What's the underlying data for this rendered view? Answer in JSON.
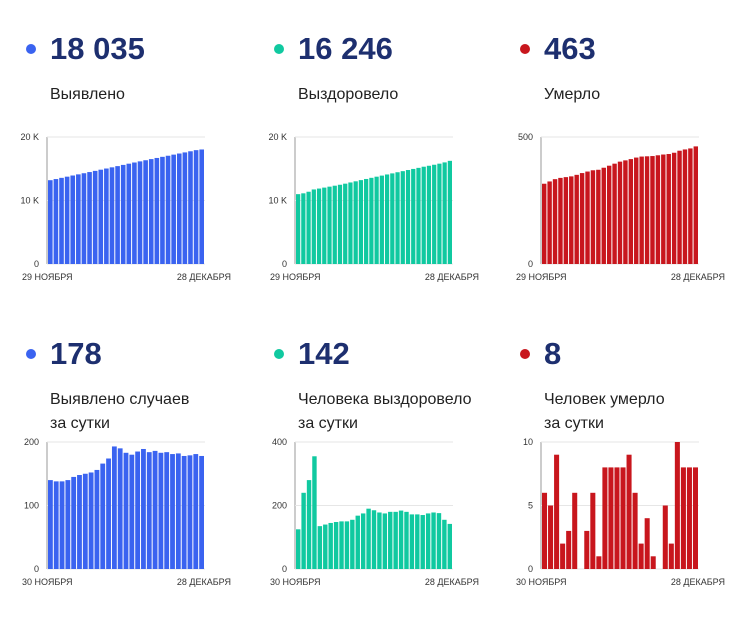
{
  "panels": [
    {
      "id": "total-cases",
      "value": "18 035",
      "label_lines": [
        "Выявлено"
      ],
      "color": "#3a63f0",
      "chart_data": {
        "type": "bar",
        "x_start_label": "29 НОЯБРЯ",
        "x_end_label": "28 ДЕКАБРЯ",
        "y_ticks": [
          {
            "v": 0,
            "t": "0"
          },
          {
            "v": 10000,
            "t": "10 K"
          },
          {
            "v": 20000,
            "t": "20 K"
          }
        ],
        "ylim": [
          0,
          20000
        ],
        "values": [
          13197,
          13377,
          13566,
          13752,
          13936,
          14116,
          14294,
          14478,
          14664,
          14852,
          15036,
          15222,
          15414,
          15605,
          15796,
          15983,
          16164,
          16340,
          16520,
          16700,
          16876,
          17048,
          17224,
          17398,
          17572,
          17752,
          17928,
          18035
        ]
      }
    },
    {
      "id": "total-recovered",
      "value": "16 246",
      "label_lines": [
        "Выздоровело"
      ],
      "color": "#10c9a0",
      "chart_data": {
        "type": "bar",
        "x_start_label": "29 НОЯБРЯ",
        "x_end_label": "28 ДЕКАБРЯ",
        "y_ticks": [
          {
            "v": 0,
            "t": "0"
          },
          {
            "v": 10000,
            "t": "10 K"
          },
          {
            "v": 20000,
            "t": "20 K"
          }
        ],
        "ylim": [
          0,
          20000
        ],
        "values": [
          11000,
          11130,
          11380,
          11740,
          11880,
          12030,
          12180,
          12330,
          12480,
          12650,
          12840,
          13020,
          13210,
          13390,
          13570,
          13750,
          13920,
          14100,
          14270,
          14450,
          14620,
          14800,
          14970,
          15140,
          15320,
          15470,
          15630,
          15800,
          16000,
          16246
        ]
      }
    },
    {
      "id": "total-deaths",
      "value": "463",
      "label_lines": [
        "Умерло"
      ],
      "color": "#c8161d",
      "chart_data": {
        "type": "bar",
        "x_start_label": "29 НОЯБРЯ",
        "x_end_label": "28 ДЕКАБРЯ",
        "y_ticks": [
          {
            "v": 0,
            "t": "0"
          },
          {
            "v": 500,
            "t": "500"
          }
        ],
        "ylim": [
          0,
          500
        ],
        "values": [
          316,
          325,
          334,
          339,
          342,
          345,
          351,
          358,
          364,
          369,
          371,
          379,
          387,
          395,
          403,
          408,
          413,
          419,
          423,
          424,
          425,
          428,
          431,
          433,
          438,
          446,
          451,
          455,
          463
        ]
      }
    },
    {
      "id": "daily-cases",
      "value": "178",
      "label_lines": [
        "Выявлено случаев",
        "за сутки"
      ],
      "color": "#3a63f0",
      "chart_data": {
        "type": "bar",
        "x_start_label": "30 НОЯБРЯ",
        "x_end_label": "28 ДЕКАБРЯ",
        "y_ticks": [
          {
            "v": 0,
            "t": "0"
          },
          {
            "v": 100,
            "t": "100"
          },
          {
            "v": 200,
            "t": "200"
          }
        ],
        "ylim": [
          0,
          200
        ],
        "values": [
          140,
          138,
          138,
          140,
          145,
          148,
          150,
          152,
          156,
          166,
          174,
          193,
          190,
          183,
          180,
          185,
          189,
          184,
          186,
          183,
          184,
          181,
          182,
          178,
          179,
          181,
          178
        ]
      }
    },
    {
      "id": "daily-recovered",
      "value": "142",
      "label_lines": [
        "Человека выздоровело",
        "за сутки"
      ],
      "color": "#10c9a0",
      "chart_data": {
        "type": "bar",
        "x_start_label": "30 НОЯБРЯ",
        "x_end_label": "28 ДЕКАБРЯ",
        "y_ticks": [
          {
            "v": 0,
            "t": "0"
          },
          {
            "v": 200,
            "t": "200"
          },
          {
            "v": 400,
            "t": "400"
          }
        ],
        "ylim": [
          0,
          400
        ],
        "values": [
          125,
          240,
          280,
          355,
          135,
          140,
          145,
          148,
          150,
          150,
          155,
          168,
          175,
          190,
          185,
          178,
          175,
          180,
          180,
          184,
          180,
          172,
          172,
          170,
          175,
          178,
          176,
          155,
          142
        ]
      }
    },
    {
      "id": "daily-deaths",
      "value": "8",
      "label_lines": [
        "Человек умерло",
        "за сутки"
      ],
      "color": "#c8161d",
      "chart_data": {
        "type": "bar",
        "x_start_label": "30 НОЯБРЯ",
        "x_end_label": "28 ДЕКАБРЯ",
        "y_ticks": [
          {
            "v": 0,
            "t": "0"
          },
          {
            "v": 5,
            "t": "5"
          },
          {
            "v": 10,
            "t": "10"
          }
        ],
        "ylim": [
          0,
          10
        ],
        "values": [
          6,
          5,
          9,
          2,
          3,
          6,
          0,
          3,
          6,
          1,
          8,
          8,
          8,
          8,
          9,
          6,
          2,
          4,
          1,
          0,
          5,
          2,
          10,
          8,
          8,
          8
        ]
      }
    }
  ]
}
